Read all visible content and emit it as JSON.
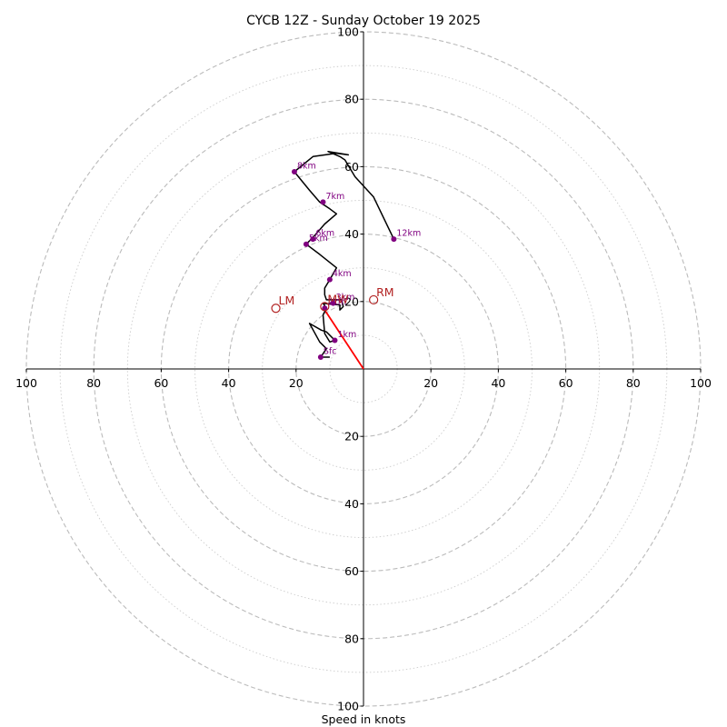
{
  "chart_data": {
    "type": "hodograph",
    "title": "CYCB 12Z - Sunday October 19 2025",
    "xlabel": "Speed in knots",
    "speed_max": 100,
    "ring_major_step": 20,
    "ring_minor_step": 10,
    "tick_labels": {
      "top": [
        "20",
        "40",
        "60",
        "80",
        "100"
      ],
      "bottom": [
        "20",
        "40",
        "60",
        "80",
        "100"
      ],
      "left": [
        "20",
        "40",
        "60",
        "80",
        "100"
      ],
      "right": [
        "20",
        "40",
        "60",
        "80",
        "100"
      ]
    },
    "trace_uv": [
      [
        -10,
        3.5
      ],
      [
        -12.7,
        3.5
      ],
      [
        -11,
        6
      ],
      [
        -13,
        8
      ],
      [
        -16,
        13.5
      ],
      [
        -12.5,
        11.5
      ],
      [
        -11,
        11
      ],
      [
        -8.5,
        8.5
      ],
      [
        -10,
        8
      ],
      [
        -11.5,
        10.5
      ],
      [
        -12,
        16
      ],
      [
        -11,
        18
      ],
      [
        -12,
        19.5
      ],
      [
        -7,
        19
      ],
      [
        -7,
        17.5
      ],
      [
        -6,
        18.5
      ],
      [
        -6.5,
        20.5
      ],
      [
        -11,
        20.5
      ],
      [
        -11.5,
        22
      ],
      [
        -11.5,
        24
      ],
      [
        -10,
        26.5
      ],
      [
        -8,
        30
      ],
      [
        -13,
        34
      ],
      [
        -17,
        37
      ],
      [
        -15,
        39
      ],
      [
        -11.5,
        43
      ],
      [
        -8,
        46
      ],
      [
        -10,
        47.5
      ],
      [
        -13,
        49.5
      ],
      [
        -16,
        53
      ],
      [
        -20.5,
        58.5
      ],
      [
        -15,
        63
      ],
      [
        -8,
        64
      ],
      [
        -4.5,
        63.5
      ],
      [
        -10.5,
        64.5
      ],
      [
        -7,
        63
      ],
      [
        -5.5,
        62
      ],
      [
        -2.5,
        57
      ],
      [
        3,
        51
      ],
      [
        9,
        38.5
      ]
    ],
    "level_points": [
      {
        "label": "Sfc",
        "u": -12.7,
        "v": 3.5
      },
      {
        "label": "1km",
        "u": -8.5,
        "v": 8.5
      },
      {
        "label": "2km",
        "u": -11.5,
        "v": 18
      },
      {
        "label": "3km",
        "u": -9,
        "v": 19.5
      },
      {
        "label": "4km",
        "u": -10,
        "v": 26.5
      },
      {
        "label": "5km",
        "u": -17,
        "v": 37
      },
      {
        "label": "6km",
        "u": -15,
        "v": 38.5
      },
      {
        "label": "7km",
        "u": -12,
        "v": 49.5
      },
      {
        "label": "8km",
        "u": -20.5,
        "v": 58.5
      },
      {
        "label": "12km",
        "u": 9,
        "v": 38.5
      }
    ],
    "shear_vector": {
      "from": [
        0,
        0
      ],
      "to": [
        -11.5,
        17.5
      ],
      "color": "#ff0000"
    },
    "storm_motion": [
      {
        "label": "LM",
        "u": -26,
        "v": 18
      },
      {
        "label": "RM",
        "u": 3,
        "v": 20.5
      },
      {
        "label": "MW",
        "u": -11.5,
        "v": 18.5
      }
    ],
    "colors": {
      "trace": "#000000",
      "level": "#800080",
      "storm_motion": "#b22222",
      "rings_major": "#bbbbbb",
      "rings_minor": "#cccccc"
    }
  }
}
